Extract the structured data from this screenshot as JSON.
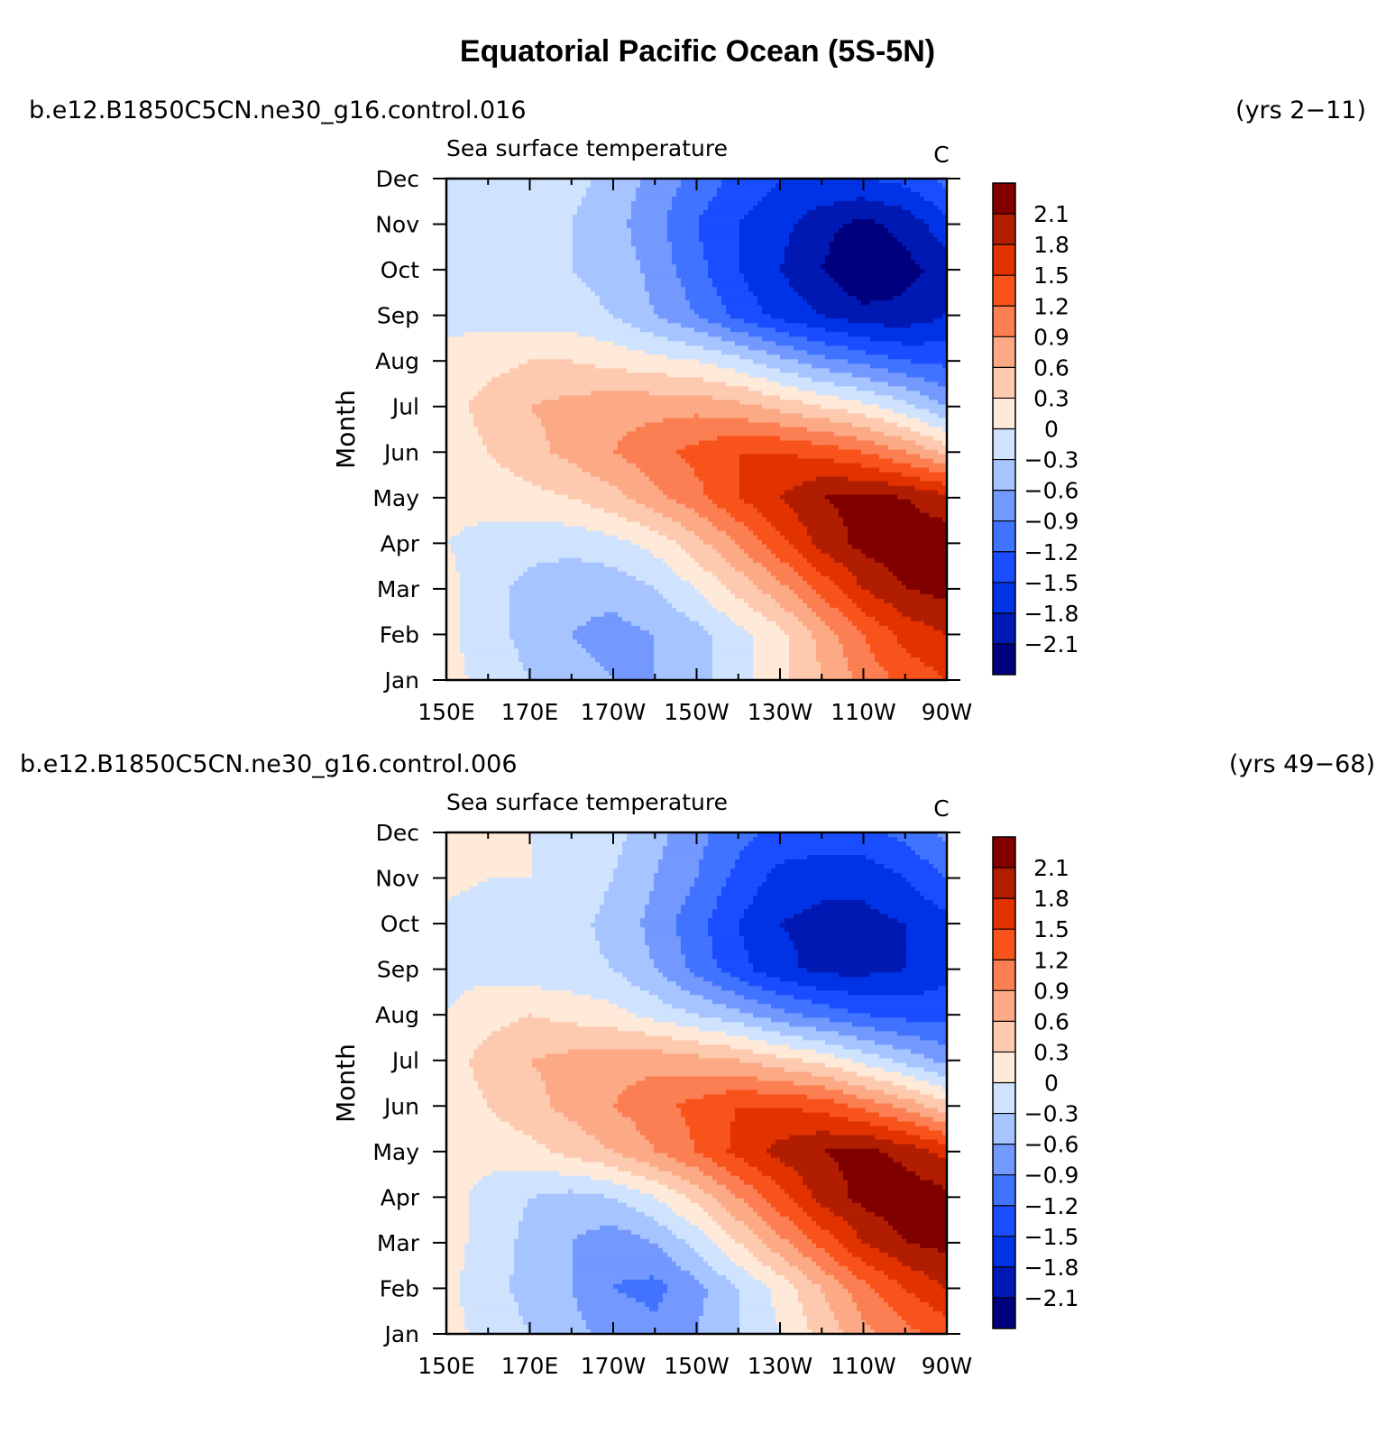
{
  "title": "Equatorial Pacific Ocean (5S-5N)",
  "colors": {
    "levels": [
      -2.4,
      -2.1,
      -1.8,
      -1.5,
      -1.2,
      -0.9,
      -0.6,
      -0.3,
      0,
      0.3,
      0.6,
      0.9,
      1.2,
      1.5,
      1.8,
      2.1
    ],
    "palette": [
      "#00007f",
      "#0019b2",
      "#0033e6",
      "#1a4dff",
      "#4073ff",
      "#7399ff",
      "#a6c4ff",
      "#cfe3fe",
      "#ffe9d9",
      "#fdcab0",
      "#fcaa85",
      "#fb7f52",
      "#f9531c",
      "#e23200",
      "#b01d00",
      "#800000"
    ]
  },
  "chart_data": [
    {
      "type": "heatmap",
      "case": "b.e12.B1850C5CN.ne30_g16.control.016",
      "years": "(yrs 2−11)",
      "subtitle": "Sea surface temperature",
      "units": "C",
      "ylabel": "Month",
      "x_ticks": [
        "150E",
        "170E",
        "170W",
        "150W",
        "130W",
        "110W",
        "90W"
      ],
      "x_tick_values": [
        150,
        170,
        190,
        210,
        230,
        250,
        270
      ],
      "xlim": [
        150,
        270
      ],
      "y_ticks": [
        "Jan",
        "Feb",
        "Mar",
        "Apr",
        "May",
        "Jun",
        "Jul",
        "Aug",
        "Sep",
        "Oct",
        "Nov",
        "Dec"
      ],
      "ylim": [
        1,
        12
      ],
      "colorbar_labels": [
        "2.1",
        "1.8",
        "1.5",
        "1.2",
        "0.9",
        "0.6",
        "0.3",
        "0",
        "−0.3",
        "−0.6",
        "−0.9",
        "−1.2",
        "−1.5",
        "−1.8",
        "−2.1"
      ],
      "x": [
        150,
        160,
        170,
        180,
        190,
        200,
        210,
        220,
        230,
        240,
        250,
        260,
        270
      ],
      "y": [
        1,
        2,
        3,
        4,
        5,
        6,
        7,
        8,
        9,
        10,
        11,
        12
      ],
      "values": [
        [
          0.1,
          -0.1,
          -0.3,
          -0.5,
          -0.6,
          -0.6,
          -0.4,
          -0.1,
          0.2,
          0.6,
          1.0,
          1.3,
          1.5
        ],
        [
          0.1,
          -0.2,
          -0.4,
          -0.6,
          -0.7,
          -0.6,
          -0.4,
          -0.1,
          0.2,
          0.7,
          1.2,
          1.6,
          1.8
        ],
        [
          0.1,
          -0.2,
          -0.4,
          -0.5,
          -0.5,
          -0.3,
          0.0,
          0.4,
          0.8,
          1.3,
          1.8,
          2.1,
          2.2
        ],
        [
          0.0,
          -0.1,
          -0.2,
          -0.2,
          -0.1,
          0.1,
          0.5,
          0.9,
          1.4,
          1.9,
          2.2,
          2.3,
          2.3
        ],
        [
          0.1,
          0.1,
          0.2,
          0.3,
          0.5,
          0.8,
          1.1,
          1.5,
          1.8,
          2.1,
          2.2,
          2.1,
          1.9
        ],
        [
          0.1,
          0.3,
          0.5,
          0.7,
          0.9,
          1.1,
          1.3,
          1.5,
          1.5,
          1.4,
          1.2,
          0.9,
          0.5
        ],
        [
          0.2,
          0.4,
          0.6,
          0.7,
          0.8,
          0.8,
          0.8,
          0.7,
          0.5,
          0.3,
          0.1,
          -0.2,
          -0.6
        ],
        [
          0.1,
          0.2,
          0.3,
          0.3,
          0.2,
          0.1,
          0.0,
          -0.2,
          -0.5,
          -0.8,
          -1.0,
          -1.2,
          -1.3
        ],
        [
          -0.1,
          -0.1,
          -0.2,
          -0.2,
          -0.3,
          -0.6,
          -0.9,
          -1.3,
          -1.6,
          -1.8,
          -2.0,
          -2.0,
          -1.8
        ],
        [
          -0.1,
          -0.2,
          -0.3,
          -0.3,
          -0.4,
          -0.7,
          -1.1,
          -1.5,
          -1.8,
          -2.1,
          -2.4,
          -2.2,
          -2.0
        ],
        [
          -0.1,
          -0.2,
          -0.2,
          -0.3,
          -0.5,
          -0.8,
          -1.2,
          -1.5,
          -1.7,
          -2.0,
          -2.2,
          -2.0,
          -1.6
        ],
        [
          0.0,
          -0.1,
          -0.1,
          -0.2,
          -0.4,
          -0.7,
          -1.0,
          -1.3,
          -1.5,
          -1.5,
          -1.5,
          -1.4,
          -1.1
        ]
      ]
    },
    {
      "type": "heatmap",
      "case": "b.e12.B1850C5CN.ne30_g16.control.006",
      "years": "(yrs 49−68)",
      "subtitle": "Sea surface temperature",
      "units": "C",
      "ylabel": "Month",
      "x_ticks": [
        "150E",
        "170E",
        "170W",
        "150W",
        "130W",
        "110W",
        "90W"
      ],
      "x_tick_values": [
        150,
        170,
        190,
        210,
        230,
        250,
        270
      ],
      "xlim": [
        150,
        270
      ],
      "y_ticks": [
        "Jan",
        "Feb",
        "Mar",
        "Apr",
        "May",
        "Jun",
        "Jul",
        "Aug",
        "Sep",
        "Oct",
        "Nov",
        "Dec"
      ],
      "ylim": [
        1,
        12
      ],
      "colorbar_labels": [
        "2.1",
        "1.8",
        "1.5",
        "1.2",
        "0.9",
        "0.6",
        "0.3",
        "0",
        "−0.3",
        "−0.6",
        "−0.9",
        "−1.2",
        "−1.5",
        "−1.8",
        "−2.1"
      ],
      "x": [
        150,
        160,
        170,
        180,
        190,
        200,
        210,
        220,
        230,
        240,
        250,
        260,
        270
      ],
      "y": [
        1,
        2,
        3,
        4,
        5,
        6,
        7,
        8,
        9,
        10,
        11,
        12
      ],
      "values": [
        [
          0.1,
          -0.1,
          -0.3,
          -0.5,
          -0.7,
          -0.8,
          -0.6,
          -0.3,
          0.0,
          0.4,
          0.8,
          1.1,
          1.3
        ],
        [
          0.1,
          -0.2,
          -0.4,
          -0.6,
          -0.9,
          -1.0,
          -0.7,
          -0.3,
          0.1,
          0.6,
          1.1,
          1.5,
          1.8
        ],
        [
          0.1,
          -0.1,
          -0.4,
          -0.6,
          -0.8,
          -0.6,
          -0.2,
          0.3,
          0.8,
          1.3,
          1.8,
          2.1,
          2.2
        ],
        [
          0.1,
          -0.1,
          -0.3,
          -0.4,
          -0.3,
          0.0,
          0.4,
          0.9,
          1.4,
          1.9,
          2.2,
          2.3,
          2.2
        ],
        [
          0.1,
          0.1,
          0.2,
          0.4,
          0.6,
          0.9,
          1.2,
          1.6,
          1.9,
          2.1,
          2.2,
          2.0,
          1.7
        ],
        [
          0.1,
          0.3,
          0.5,
          0.7,
          0.9,
          1.1,
          1.3,
          1.5,
          1.5,
          1.4,
          1.1,
          0.8,
          0.4
        ],
        [
          0.2,
          0.4,
          0.6,
          0.7,
          0.8,
          0.8,
          0.7,
          0.6,
          0.4,
          0.2,
          -0.1,
          -0.4,
          -0.7
        ],
        [
          0.0,
          0.2,
          0.3,
          0.2,
          0.1,
          -0.1,
          -0.3,
          -0.5,
          -0.8,
          -1.0,
          -1.2,
          -1.3,
          -1.3
        ],
        [
          -0.1,
          -0.1,
          -0.2,
          -0.2,
          -0.3,
          -0.6,
          -1.0,
          -1.4,
          -1.7,
          -1.9,
          -1.9,
          -1.8,
          -1.6
        ],
        [
          -0.1,
          -0.2,
          -0.2,
          -0.2,
          -0.4,
          -0.7,
          -1.1,
          -1.5,
          -1.8,
          -1.9,
          -1.9,
          -1.8,
          -1.6
        ],
        [
          0.1,
          0.0,
          0.0,
          -0.1,
          -0.3,
          -0.6,
          -0.9,
          -1.3,
          -1.6,
          -1.7,
          -1.7,
          -1.5,
          -1.2
        ],
        [
          0.1,
          0.1,
          0.0,
          -0.1,
          -0.2,
          -0.5,
          -0.8,
          -1.1,
          -1.3,
          -1.3,
          -1.3,
          -1.1,
          -0.8
        ]
      ]
    }
  ]
}
